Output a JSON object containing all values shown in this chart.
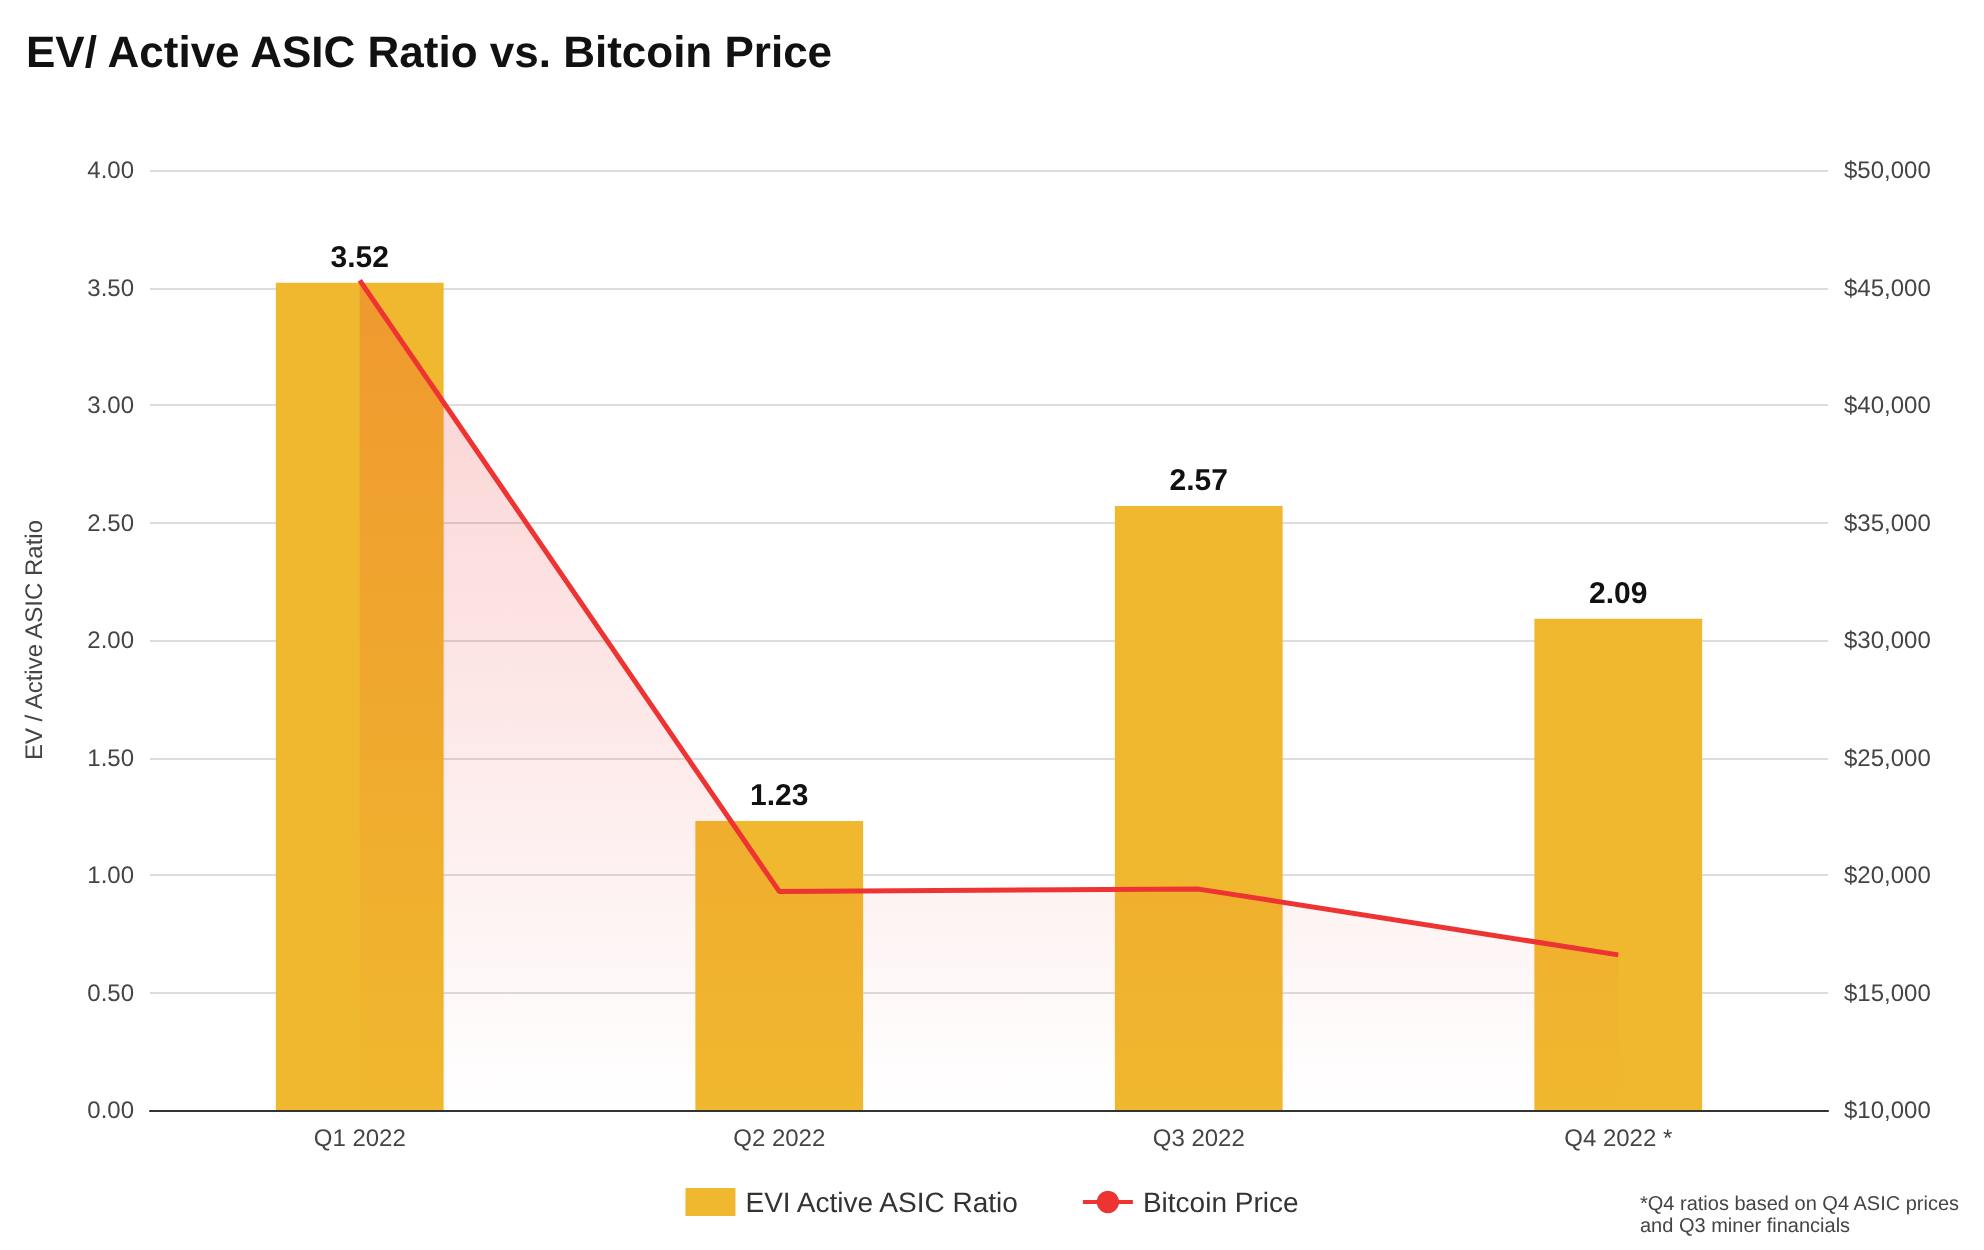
{
  "chart_data": {
    "type": "bar",
    "title": "EV/ Active ASIC Ratio vs. Bitcoin Price",
    "ylabel": "EV / Active ASIC Ratio",
    "categories": [
      "Q1 2022",
      "Q2 2022",
      "Q3 2022",
      "Q4 2022 *"
    ],
    "series": [
      {
        "name": "EVI Active ASIC Ratio",
        "color": "#f0b82e",
        "values": [
          3.52,
          1.23,
          2.57,
          2.09
        ],
        "value_labels": [
          "3.52",
          "1.23",
          "2.57",
          "2.09"
        ]
      },
      {
        "name": "Bitcoin Price",
        "type": "area",
        "axis": "y2",
        "color": "#ee3333",
        "values": [
          45300,
          19300,
          19400,
          16600
        ]
      }
    ],
    "ylim": [
      0,
      4
    ],
    "yticks": [
      "0.00",
      "0.50",
      "1.00",
      "1.50",
      "2.00",
      "2.50",
      "3.00",
      "3.50",
      "4.00"
    ],
    "y2lim": [
      10000,
      50000
    ],
    "y2ticks": [
      {
        "value": 10000,
        "label": "$10,000"
      },
      {
        "value": 15000,
        "label": "$15,000"
      },
      {
        "value": 20000,
        "label": "$20,000"
      },
      {
        "value": 25000,
        "label": "$25,000"
      },
      {
        "value": 30000,
        "label": "$30,000"
      },
      {
        "value": 35000,
        "label": "$35,000"
      },
      {
        "value": 40000,
        "label": "$40,000"
      },
      {
        "value": 45000,
        "label": "$45,000"
      },
      {
        "value": 50000,
        "label": "$50,000"
      }
    ],
    "grid": "y",
    "legend": "bottom",
    "marker": "none",
    "annotations": [
      "*Q4 ratios based on Q4 ASIC prices and Q3 miner financials"
    ]
  }
}
